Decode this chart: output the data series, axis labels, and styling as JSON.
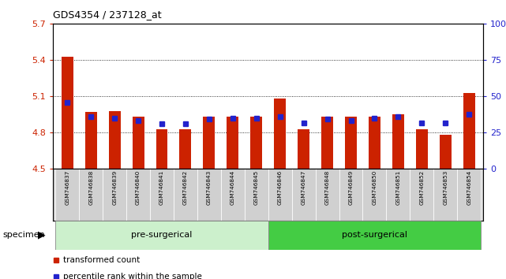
{
  "title": "GDS4354 / 237128_at",
  "samples": [
    "GSM746837",
    "GSM746838",
    "GSM746839",
    "GSM746840",
    "GSM746841",
    "GSM746842",
    "GSM746843",
    "GSM746844",
    "GSM746845",
    "GSM746846",
    "GSM746847",
    "GSM746848",
    "GSM746849",
    "GSM746850",
    "GSM746851",
    "GSM746852",
    "GSM746853",
    "GSM746854"
  ],
  "red_values": [
    5.43,
    4.97,
    4.98,
    4.93,
    4.83,
    4.83,
    4.93,
    4.93,
    4.93,
    5.08,
    4.83,
    4.93,
    4.93,
    4.93,
    4.95,
    4.83,
    4.78,
    5.13
  ],
  "blue_values": [
    5.05,
    4.93,
    4.92,
    4.9,
    4.87,
    4.87,
    4.91,
    4.92,
    4.92,
    4.93,
    4.88,
    4.91,
    4.9,
    4.92,
    4.93,
    4.88,
    4.88,
    4.95
  ],
  "ymin": 4.5,
  "ymax": 5.7,
  "yticks_left": [
    4.5,
    4.8,
    5.1,
    5.4,
    5.7
  ],
  "yticks_right": [
    0,
    25,
    50,
    75,
    100
  ],
  "grid_lines": [
    4.8,
    5.1,
    5.4
  ],
  "bar_color": "#cc2200",
  "blue_color": "#2222cc",
  "pre_color": "#ccf0cc",
  "post_color": "#44cc44",
  "xtick_bg": "#d0d0d0",
  "pre_label": "pre-surgerical",
  "post_label": "post-surgerical",
  "pre_count": 9,
  "post_count": 9,
  "legend_red": "transformed count",
  "legend_blue": "percentile rank within the sample"
}
